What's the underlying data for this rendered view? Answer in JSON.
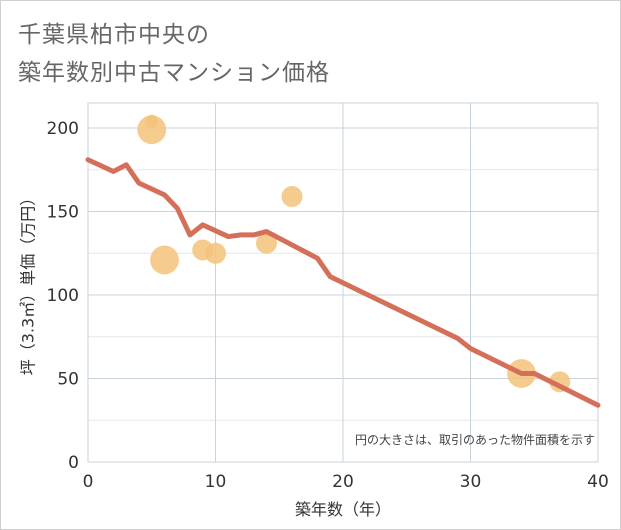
{
  "title": {
    "line1": "千葉県柏市中央の",
    "line2": "築年数別中古マンション価格"
  },
  "chart_data": {
    "type": "scatter",
    "xlabel": "築年数（年）",
    "ylabel": "坪（3.3㎡）単価（万円）",
    "xlim": [
      0,
      40
    ],
    "ylim": [
      0,
      215
    ],
    "x_ticks": [
      0,
      10,
      20,
      30,
      40
    ],
    "y_ticks": [
      0,
      50,
      100,
      150,
      200
    ],
    "grid": true,
    "note": "円の大きさは、取引のあった物件面積を示す",
    "colors": {
      "bubble": "#f5c27a",
      "trend_line": "#d4705a",
      "grid": "#c9d3db",
      "tick_text": "#333333"
    },
    "bubbles": [
      {
        "x": 5,
        "y": 204,
        "size": 1
      },
      {
        "x": 5,
        "y": 199,
        "size": 4
      },
      {
        "x": 6,
        "y": 121,
        "size": 4
      },
      {
        "x": 9,
        "y": 127,
        "size": 2.5
      },
      {
        "x": 10,
        "y": 125,
        "size": 2.5
      },
      {
        "x": 14,
        "y": 131,
        "size": 2.5
      },
      {
        "x": 16,
        "y": 159,
        "size": 2.5
      },
      {
        "x": 34,
        "y": 53,
        "size": 4
      },
      {
        "x": 37,
        "y": 48,
        "size": 2.5
      }
    ],
    "trend_line": {
      "x": [
        0,
        2,
        3,
        4,
        6,
        7,
        8,
        9,
        11,
        12,
        13,
        14,
        18,
        19,
        29,
        30,
        34,
        35,
        40
      ],
      "y": [
        181,
        174,
        178,
        167,
        160,
        152,
        136,
        142,
        135,
        136,
        136,
        138,
        122,
        111,
        74,
        68,
        53,
        53,
        34
      ]
    }
  }
}
